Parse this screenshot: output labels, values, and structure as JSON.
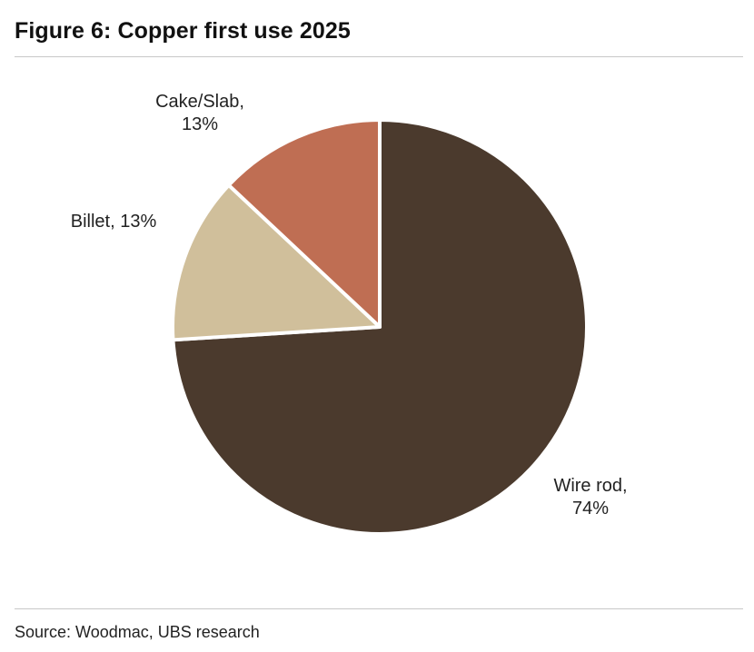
{
  "title": "Figure 6: Copper first use 2025",
  "source": "Source: Woodmac, UBS research",
  "chart_data": {
    "type": "pie",
    "title": "Figure 6: Copper first use 2025",
    "slices": [
      {
        "name": "Wire rod",
        "value": 74,
        "label": "Wire rod,\n74%",
        "color": "#4b3a2d"
      },
      {
        "name": "Billet",
        "value": 13,
        "label": "Billet, 13%",
        "color": "#d0bf9b"
      },
      {
        "name": "Cake/Slab",
        "value": 13,
        "label": "Cake/Slab,\n13%",
        "color": "#bf6e53"
      }
    ],
    "start_angle_deg": 0,
    "direction": "clockwise"
  }
}
